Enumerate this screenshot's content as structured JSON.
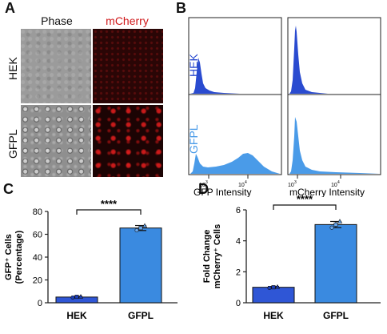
{
  "panels": {
    "a": "A",
    "b": "B",
    "c": "C",
    "d": "D"
  },
  "panelA": {
    "columns": [
      "Phase",
      "mCherry"
    ],
    "rows": [
      "HEK",
      "GFPL"
    ],
    "colors": {
      "phase_header": "#111111",
      "mcherry_header": "#d0191b"
    }
  },
  "panelB": {
    "rows": [
      "HEK",
      "GFPL"
    ],
    "row_colors": {
      "HEK": "#2a4bd0",
      "GFPL": "#4a9be8"
    },
    "xlabels": [
      "GFP Intensity",
      "mCherry Intensity"
    ],
    "ticks": [
      "10",
      "3",
      "10",
      "4"
    ]
  },
  "chart_data": [
    {
      "type": "bar",
      "panel": "C",
      "title": "",
      "xlabel": "",
      "ylabel": "GFP⁺ Cells (Percentage)",
      "ylabel_lines": [
        "GFP⁺ Cells",
        "(Percentage)"
      ],
      "categories": [
        "HEK",
        "GFPL"
      ],
      "values": [
        5,
        65.5
      ],
      "errors": [
        0.6,
        2.2
      ],
      "points": [
        [
          4.6,
          5.2,
          5.4
        ],
        [
          63.5,
          65.5,
          67.5
        ]
      ],
      "colors": [
        "#2f56d6",
        "#3a8ae0"
      ],
      "ylim": [
        0,
        80
      ],
      "yticks": [
        0,
        20,
        40,
        60,
        80
      ],
      "significance": "****"
    },
    {
      "type": "bar",
      "panel": "D",
      "title": "",
      "xlabel": "",
      "ylabel": "Fold Change mCherry⁺ Cells",
      "ylabel_lines": [
        "Fold Change",
        "mCherry⁺ Cells"
      ],
      "categories": [
        "HEK",
        "GFPL"
      ],
      "values": [
        1.0,
        5.05
      ],
      "errors": [
        0.05,
        0.2
      ],
      "points": [
        [
          0.96,
          1.0,
          1.03
        ],
        [
          4.85,
          5.05,
          5.25
        ]
      ],
      "colors": [
        "#2f56d6",
        "#3a8ae0"
      ],
      "ylim": [
        0,
        6
      ],
      "yticks": [
        0,
        2,
        4,
        6
      ],
      "significance": "****"
    }
  ]
}
